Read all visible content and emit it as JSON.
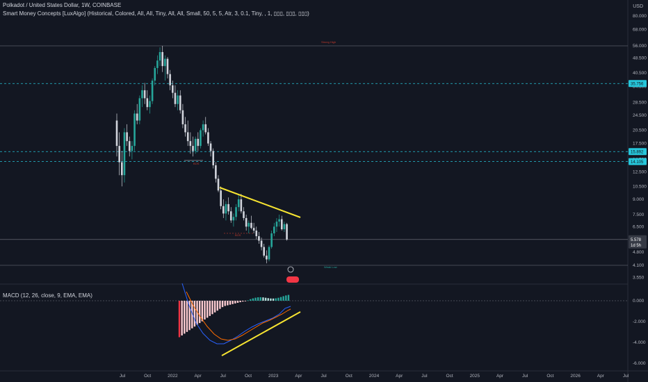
{
  "header": {
    "title": "Polkadot / United States Dollar, 1W, COINBASE",
    "indicator": "Smart Money Concepts [LuxAlgo] (Historical, Colored, All, All, Tiny, All, All, Small, 50, 5, 5, Atr, 3, 0.1, Tiny, , 1, ▯▯▯, ▯▯▯, ▯▯▯)",
    "macd": "MACD (12, 26, close, 9, EMA, EMA)",
    "currency": "USD"
  },
  "chart_data": {
    "type": "candlestick",
    "price_axis": {
      "scale": "log",
      "ticks": [
        "80.000",
        "68.000",
        "56.000",
        "48.500",
        "40.500",
        "34.500",
        "28.500",
        "24.500",
        "20.500",
        "17.500",
        "14.500",
        "12.500",
        "10.500",
        "9.000",
        "7.500",
        "6.500",
        "5.578",
        "4.800",
        "4.100",
        "3.550"
      ]
    },
    "time_axis_labels": [
      "Jul",
      "Oct",
      "2022",
      "Apr",
      "Jul",
      "Oct",
      "2023",
      "Apr",
      "Jul",
      "Oct",
      "2024",
      "Apr",
      "Jul",
      "Oct",
      "2025",
      "Apr",
      "Jul",
      "Oct",
      "2026",
      "Apr",
      "Jul"
    ],
    "horizontal_levels": [
      {
        "value": "35.756",
        "style": "dashed",
        "color": "#26c6da"
      },
      {
        "value": "15.892",
        "style": "dashed",
        "color": "#26c6da"
      },
      {
        "value": "14.105",
        "style": "dashed",
        "color": "#26c6da"
      }
    ],
    "last_price": "5.578",
    "countdown": "1d 5h",
    "annotations": [
      "Strong High",
      "BOS",
      "BOS",
      "Weak Low"
    ],
    "macd": {
      "ticks": [
        "0.000",
        "-2.000",
        "-4.000",
        "-6.000"
      ]
    },
    "series": [
      {
        "name": "DOTUSD",
        "ohlc": [
          [
            23,
            25,
            15,
            17
          ],
          [
            17,
            20,
            12,
            14
          ],
          [
            14,
            16,
            10.5,
            12
          ],
          [
            12,
            21,
            11,
            20
          ],
          [
            20,
            22,
            17,
            18
          ],
          [
            18,
            19,
            15,
            16
          ],
          [
            16,
            18,
            14.5,
            17
          ],
          [
            17,
            26,
            16,
            25
          ],
          [
            25,
            28,
            22,
            23
          ],
          [
            23,
            31,
            22,
            30
          ],
          [
            30,
            35,
            27,
            33
          ],
          [
            33,
            36,
            28,
            30
          ],
          [
            30,
            33,
            26,
            27
          ],
          [
            27,
            31,
            25,
            29
          ],
          [
            29,
            38,
            28,
            37
          ],
          [
            37,
            44,
            35,
            43
          ],
          [
            43,
            50,
            40,
            47
          ],
          [
            47,
            55,
            44,
            52
          ],
          [
            52,
            56,
            41,
            44
          ],
          [
            44,
            50,
            37,
            48
          ],
          [
            48,
            49,
            38,
            40
          ],
          [
            40,
            42,
            33,
            35
          ],
          [
            35,
            37,
            30,
            32
          ],
          [
            32,
            35,
            27,
            28
          ],
          [
            28,
            33,
            26,
            31
          ],
          [
            31,
            33,
            25,
            26
          ],
          [
            26,
            28,
            21,
            22
          ],
          [
            22,
            24,
            19,
            20
          ],
          [
            20,
            23,
            17,
            18
          ],
          [
            18,
            20,
            15.5,
            17
          ],
          [
            17,
            19,
            15,
            16
          ],
          [
            16,
            19,
            15.5,
            18.5
          ],
          [
            18.5,
            20,
            16,
            17
          ],
          [
            17,
            21,
            16.5,
            20.5
          ],
          [
            20.5,
            23,
            19,
            22
          ],
          [
            22,
            24,
            19.5,
            20
          ],
          [
            20,
            21,
            17,
            17.5
          ],
          [
            17.5,
            18,
            15,
            16
          ],
          [
            16,
            16.5,
            13,
            13.5
          ],
          [
            13.5,
            14,
            11,
            11.5
          ],
          [
            11.5,
            12,
            9.8,
            10
          ],
          [
            10,
            10.5,
            8,
            8.3
          ],
          [
            8.3,
            9,
            7.2,
            7.6
          ],
          [
            7.6,
            8.8,
            7,
            8.5
          ],
          [
            8.5,
            9.2,
            7.5,
            7.8
          ],
          [
            7.8,
            8.2,
            6.8,
            7
          ],
          [
            7,
            7.6,
            6.5,
            7.3
          ],
          [
            7.3,
            8.5,
            7,
            8.2
          ],
          [
            8.2,
            9.5,
            7.8,
            9
          ],
          [
            9,
            9.6,
            7.6,
            7.8
          ],
          [
            7.8,
            8.2,
            7,
            7.2
          ],
          [
            7.2,
            7.5,
            6.2,
            6.5
          ],
          [
            6.5,
            7,
            6,
            6.8
          ],
          [
            6.8,
            7.4,
            6.3,
            6.4
          ],
          [
            6.4,
            6.8,
            6,
            6.2
          ],
          [
            6.2,
            6.5,
            5.6,
            5.8
          ],
          [
            5.8,
            6.1,
            5.3,
            5.5
          ],
          [
            5.5,
            5.7,
            4.9,
            5.1
          ],
          [
            5.1,
            5.3,
            4.5,
            4.6
          ],
          [
            4.6,
            4.9,
            4.2,
            4.4
          ],
          [
            4.4,
            5.2,
            4.3,
            5.1
          ],
          [
            5.1,
            6.2,
            5,
            6
          ],
          [
            6,
            6.8,
            5.8,
            6.5
          ],
          [
            6.5,
            7.2,
            6.1,
            6.9
          ],
          [
            6.9,
            7.5,
            6.5,
            7.1
          ],
          [
            7.1,
            7.4,
            6.2,
            6.3
          ],
          [
            6.3,
            6.9,
            6.1,
            6.7
          ],
          [
            6.7,
            6.8,
            5.5,
            5.578
          ]
        ]
      }
    ]
  }
}
